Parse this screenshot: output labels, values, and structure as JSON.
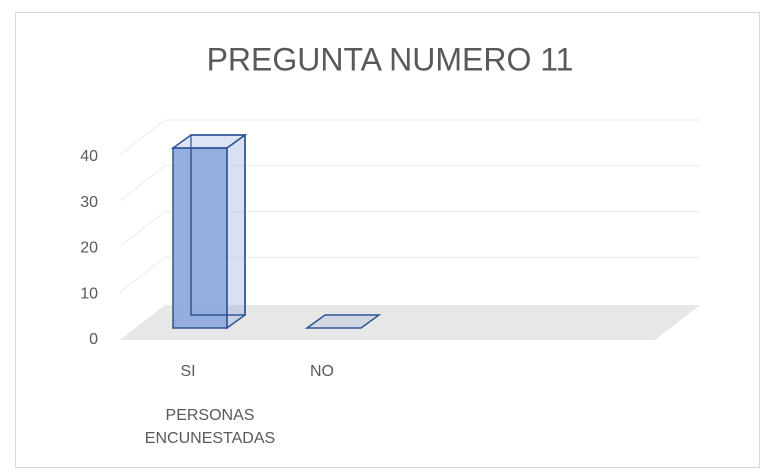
{
  "chart_data": {
    "type": "bar3d",
    "title": "PREGUNTA NUMERO 11",
    "categories": [
      "SI",
      "NO"
    ],
    "values": [
      40,
      0
    ],
    "color": "#8faadc",
    "x_label": "PERSONAS ENCUNESTADAS",
    "ylim": [
      0,
      40
    ],
    "yticks": [
      0,
      10,
      20,
      30,
      40
    ],
    "grid": true
  }
}
